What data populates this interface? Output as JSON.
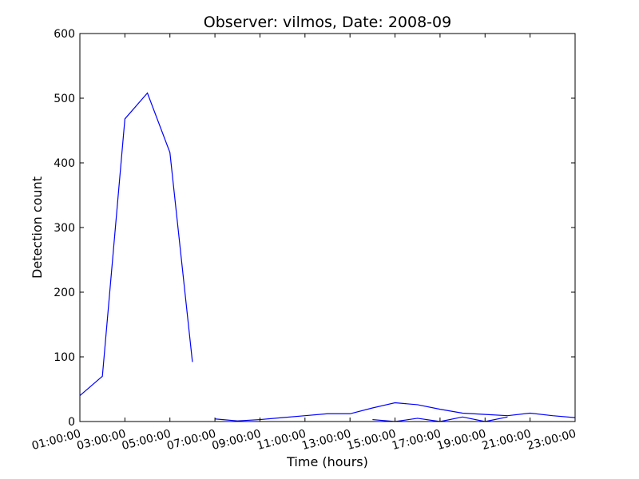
{
  "chart_data": {
    "type": "line",
    "title": "Observer: vilmos, Date: 2008-09",
    "xlabel": "Time (hours)",
    "ylabel": "Detection count",
    "ylim": [
      0,
      600
    ],
    "xlim": [
      "01:00:00",
      "23:00:00"
    ],
    "grid": false,
    "y_ticks": [
      "0",
      "100",
      "200",
      "300",
      "400",
      "500",
      "600"
    ],
    "x_ticks": [
      "01:00:00",
      "03:00:00",
      "05:00:00",
      "07:00:00",
      "09:00:00",
      "11:00:00",
      "13:00:00",
      "15:00:00",
      "17:00:00",
      "19:00:00",
      "21:00:00",
      "23:00:00"
    ],
    "line_color": "#0000ff",
    "series": [
      {
        "x": [
          "01:00:00",
          "02:00:00",
          "03:00:00",
          "04:00:00",
          "05:00:00",
          "06:00:00"
        ],
        "values": [
          40,
          70,
          468,
          508,
          416,
          92
        ]
      },
      {
        "x": [
          "07:00:00",
          "08:00:00",
          "09:00:00",
          "10:00:00",
          "11:00:00",
          "12:00:00",
          "13:00:00",
          "14:00:00",
          "15:00:00",
          "16:00:00",
          "17:00:00",
          "18:00:00",
          "19:00:00",
          "20:00:00",
          "21:00:00",
          "22:00:00",
          "23:00:00"
        ],
        "values": [
          4,
          1,
          3,
          6,
          9,
          12,
          12,
          21,
          29,
          26,
          19,
          13,
          11,
          9,
          13,
          9,
          6
        ]
      },
      {
        "x": [
          "14:00:00",
          "15:00:00",
          "16:00:00",
          "17:00:00",
          "18:00:00",
          "19:00:00",
          "20:00:00"
        ],
        "values": [
          3,
          0,
          5,
          0,
          7,
          0,
          7
        ]
      }
    ]
  }
}
